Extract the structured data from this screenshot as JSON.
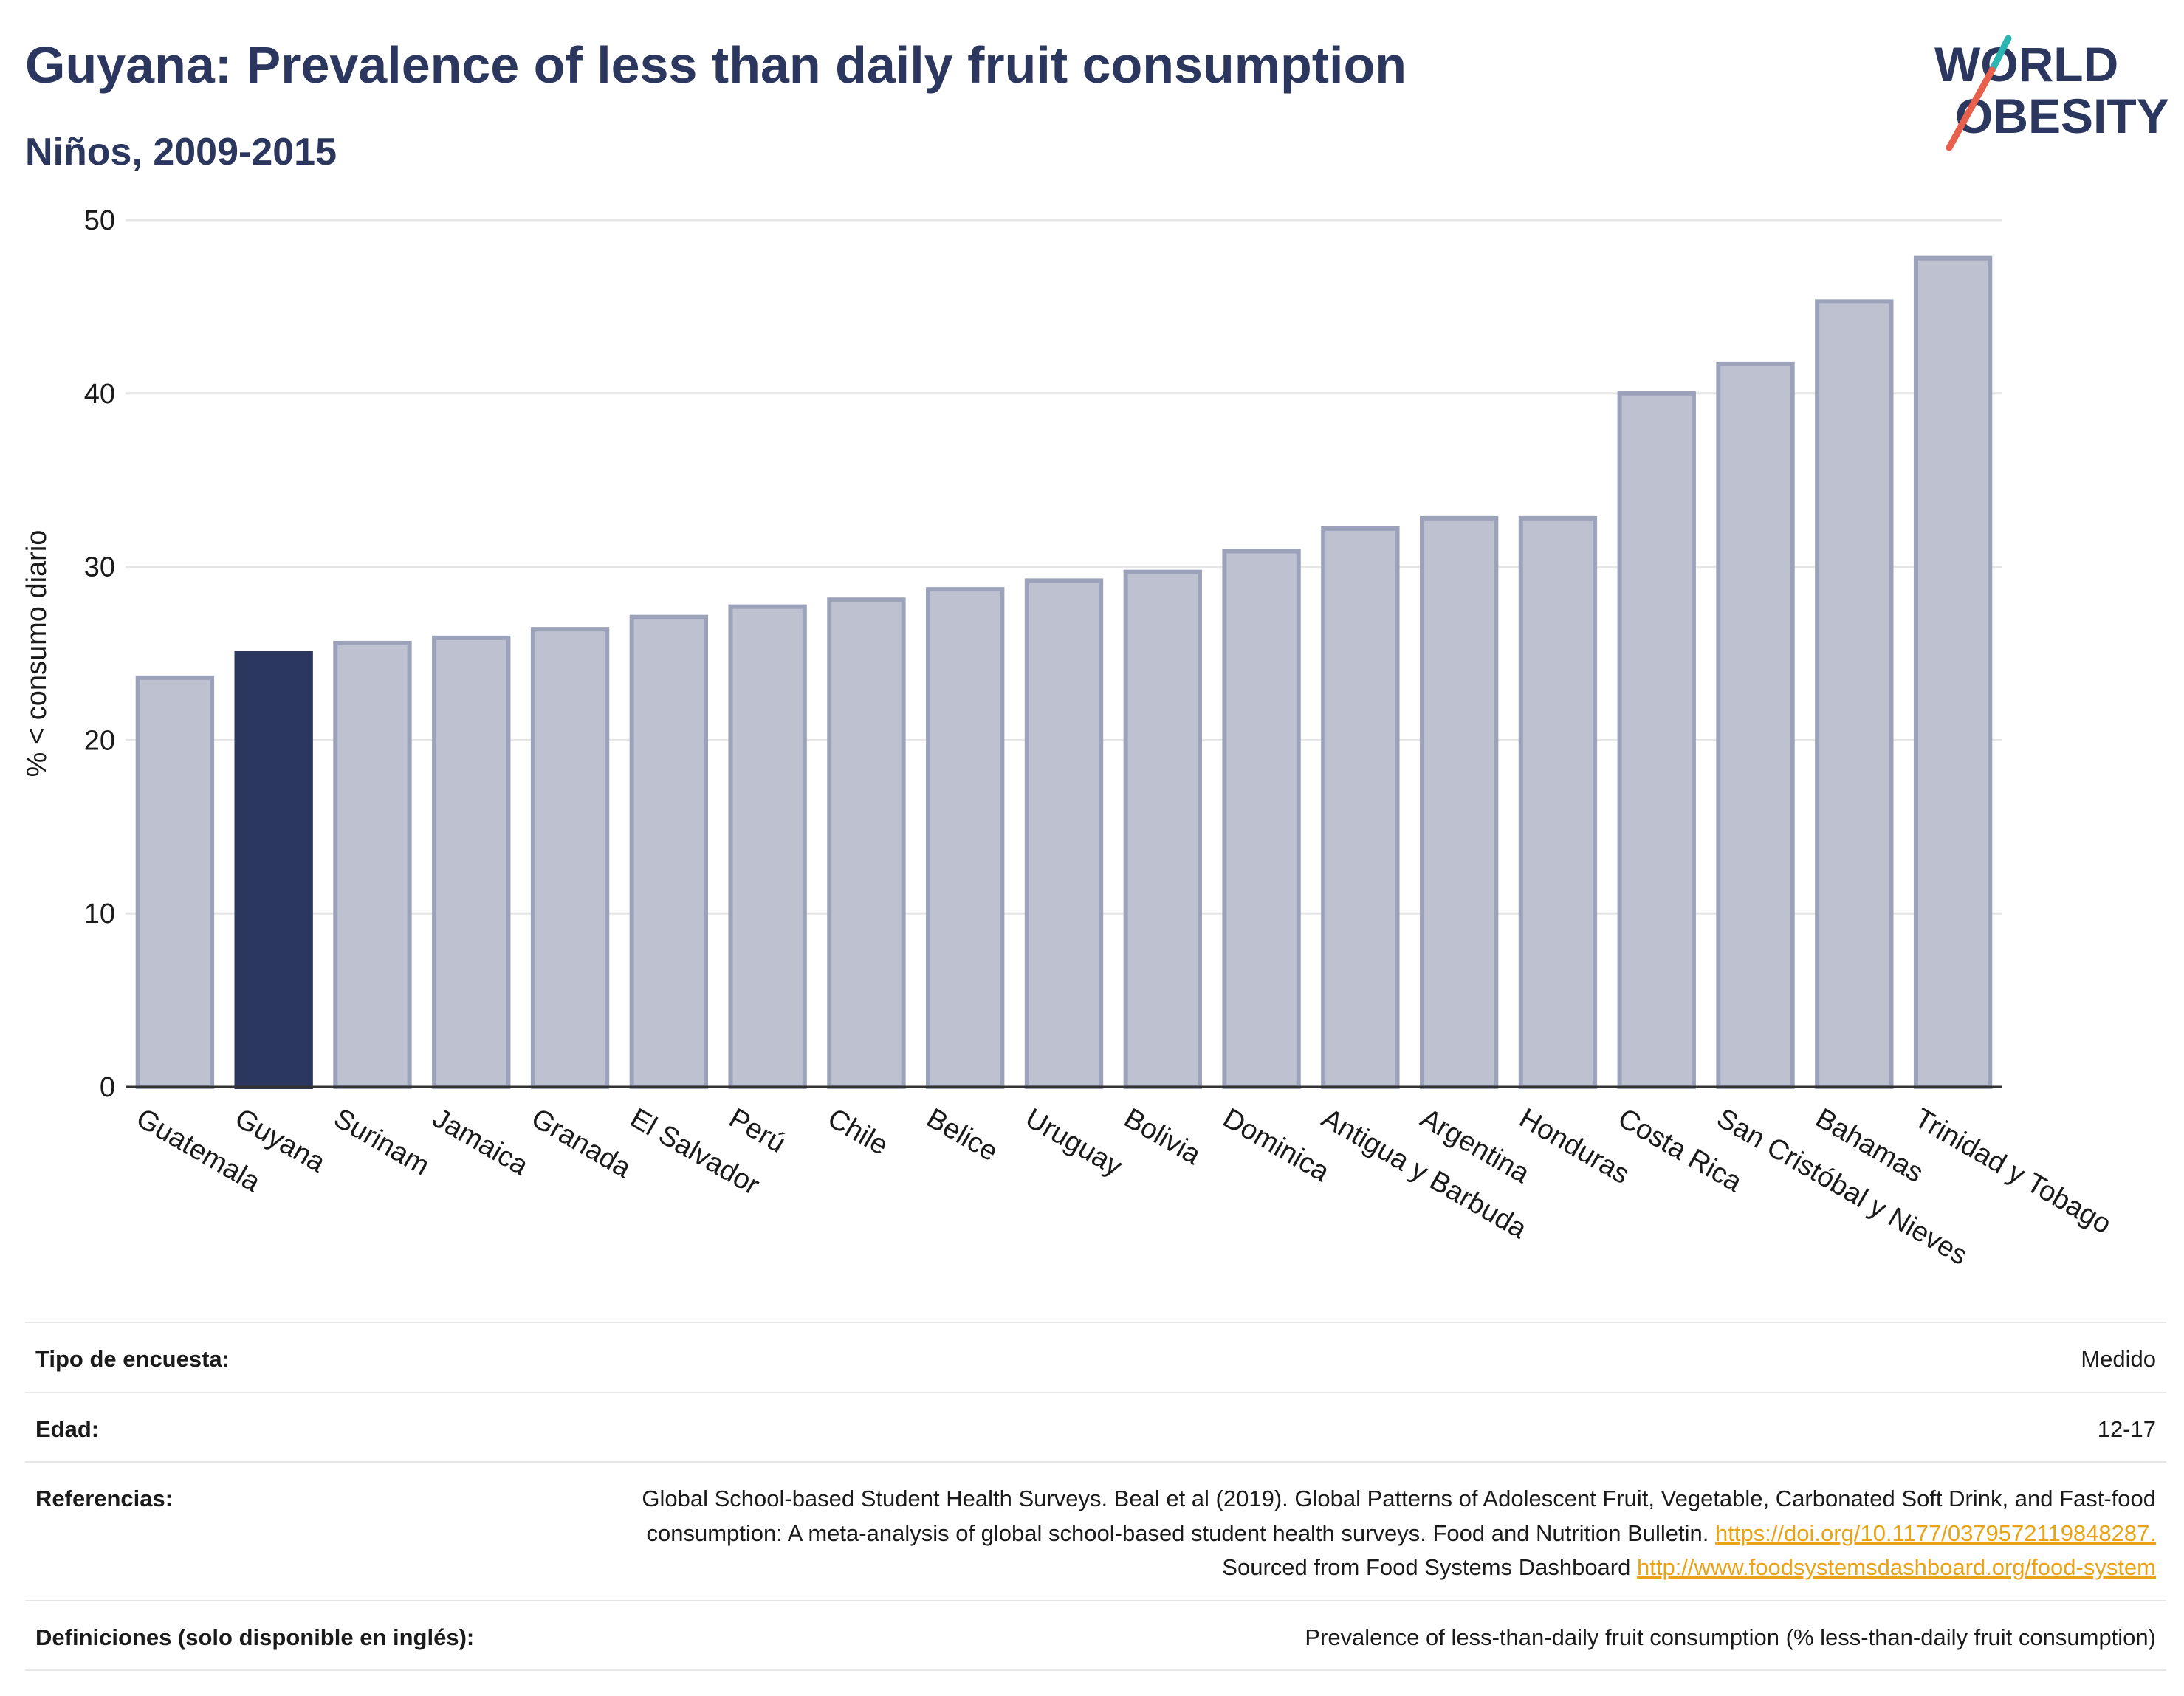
{
  "header": {
    "title": "Guyana: Prevalence of less than daily fruit consumption",
    "subtitle": "Niños, 2009-2015"
  },
  "logo": {
    "line1": "WORLD",
    "line2": "OBESITY",
    "accent_teal": "#2bb5b0",
    "accent_red": "#e8604c",
    "text_color": "#2b375f"
  },
  "colors": {
    "highlight_bar": "#2b375f",
    "bar_fill": "#bec2d0",
    "bar_stroke": "#9ba2ba"
  },
  "chart_data": {
    "type": "bar",
    "ylabel": "% < consumo diario",
    "xlabel": "",
    "ylim": [
      0,
      50
    ],
    "yticks": [
      0,
      10,
      20,
      30,
      40,
      50
    ],
    "grid": true,
    "highlight": "Guyana",
    "categories": [
      "Guatemala",
      "Guyana",
      "Surinam",
      "Jamaica",
      "Granada",
      "El Salvador",
      "Perú",
      "Chile",
      "Belice",
      "Uruguay",
      "Bolivia",
      "Dominica",
      "Antigua y Barbuda",
      "Argentina",
      "Honduras",
      "Costa Rica",
      "San Cristóbal y Nieves",
      "Bahamas",
      "Trinidad y Tobago"
    ],
    "values": [
      23.6,
      25.0,
      25.6,
      25.9,
      26.4,
      27.1,
      27.7,
      28.1,
      28.7,
      29.2,
      29.7,
      30.9,
      32.2,
      32.8,
      32.8,
      40.0,
      41.7,
      45.3,
      47.8
    ]
  },
  "meta": {
    "survey_type": {
      "label": "Tipo de encuesta:",
      "value": "Medido"
    },
    "age": {
      "label": "Edad:",
      "value": "12-17"
    },
    "references": {
      "label": "Referencias:",
      "text_1": "Global School-based Student Health Surveys. Beal et al (2019). Global Patterns of Adolescent Fruit, Vegetable, Carbonated Soft Drink, and Fast-food consumption: A meta-analysis of global school-based student health surveys. Food and Nutrition Bulletin.",
      "link_1": "https://doi.org/10.1177/0379572119848287.",
      "text_2": "Sourced from Food Systems Dashboard",
      "link_2": "http://www.foodsystemsdashboard.org/food-system"
    },
    "definitions": {
      "label": "Definiciones (solo disponible en inglés):",
      "value": "Prevalence of less-than-daily fruit consumption (% less-than-daily fruit consumption)"
    }
  }
}
